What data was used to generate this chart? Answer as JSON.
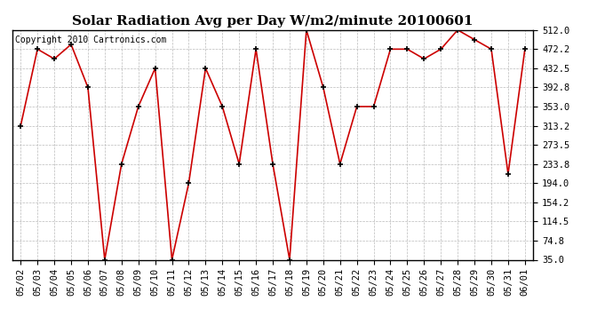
{
  "title": "Solar Radiation Avg per Day W/m2/minute 20100601",
  "copyright": "Copyright 2010 Cartronics.com",
  "dates": [
    "05/02",
    "05/03",
    "05/04",
    "05/05",
    "05/06",
    "05/07",
    "05/08",
    "05/09",
    "05/10",
    "05/11",
    "05/12",
    "05/13",
    "05/14",
    "05/15",
    "05/16",
    "05/17",
    "05/18",
    "05/19",
    "05/20",
    "05/21",
    "05/22",
    "05/23",
    "05/24",
    "05/25",
    "05/26",
    "05/27",
    "05/28",
    "05/29",
    "05/30",
    "05/31",
    "06/01"
  ],
  "values": [
    313.2,
    472.2,
    452.0,
    482.0,
    392.8,
    35.0,
    233.8,
    353.0,
    432.5,
    35.0,
    194.0,
    432.5,
    353.0,
    233.8,
    472.2,
    233.8,
    35.0,
    512.0,
    392.8,
    233.8,
    353.0,
    353.0,
    472.2,
    472.2,
    452.0,
    472.2,
    512.0,
    492.0,
    472.2,
    213.0,
    472.2
  ],
  "line_color": "#cc0000",
  "marker_color": "#000000",
  "bg_color": "#ffffff",
  "grid_color": "#bbbbbb",
  "ylim": [
    35.0,
    512.0
  ],
  "yticks": [
    35.0,
    74.8,
    114.5,
    154.2,
    194.0,
    233.8,
    273.5,
    313.2,
    353.0,
    392.8,
    432.5,
    472.2,
    512.0
  ],
  "title_fontsize": 11,
  "copyright_fontsize": 7,
  "tick_fontsize": 7.5
}
